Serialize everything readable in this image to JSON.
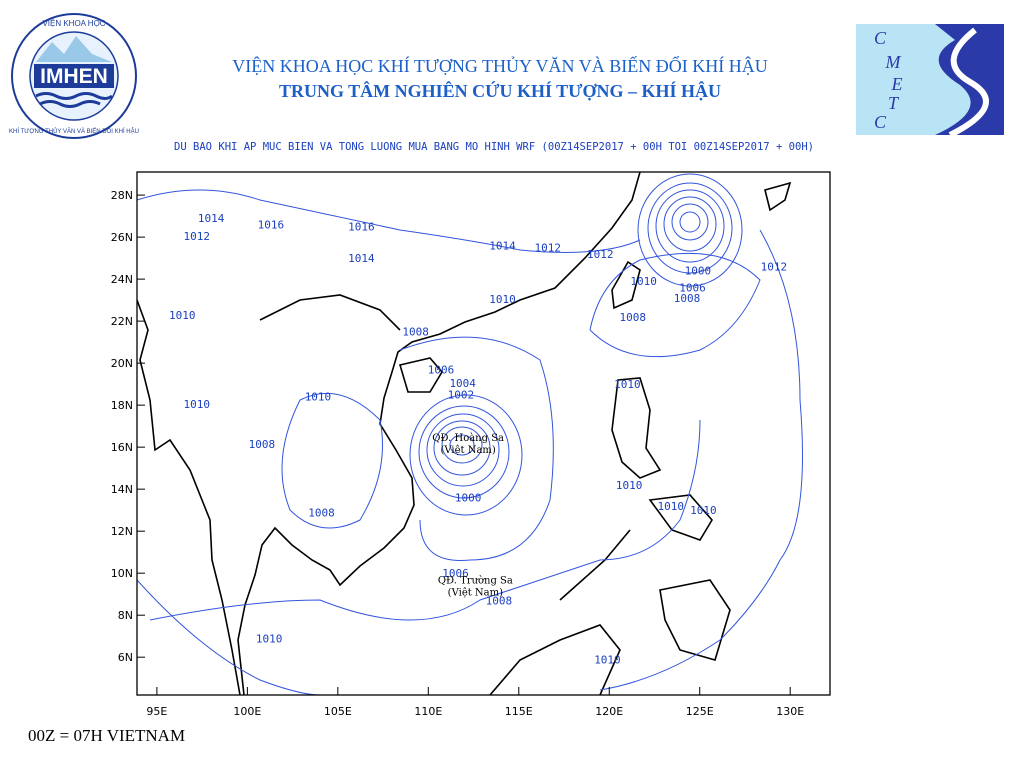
{
  "header": {
    "institute": "VIỆN KHOA HỌC KHÍ TƯỢNG THỦY VĂN VÀ BIẾN ĐỔI KHÍ HẬU",
    "center": "TRUNG TÂM NGHIÊN CỨU KHÍ TƯỢNG – KHÍ HẬU",
    "left_logo": {
      "name": "IMHEN",
      "ring_top": "VIỆN KHOA HỌC",
      "ring_bottom": "KHÍ TƯỢNG THỦY VĂN VÀ BIẾN ĐỔI KHÍ HẬU"
    },
    "right_logo": {
      "letters": [
        "C",
        "M",
        "E",
        "T",
        "C"
      ]
    }
  },
  "map": {
    "title": "DU BAO KHI AP MUC BIEN VA TONG LUONG MUA BANG MO HINH WRF (00Z14SEP2017 + 00H TOI 00Z14SEP2017 + 00H)",
    "xlim": [
      93.9,
      132.2
    ],
    "ylim": [
      4.2,
      29.1
    ],
    "xticks": [
      {
        "value": 95,
        "label": "95E"
      },
      {
        "value": 100,
        "label": "100E"
      },
      {
        "value": 105,
        "label": "105E"
      },
      {
        "value": 110,
        "label": "110E"
      },
      {
        "value": 115,
        "label": "115E"
      },
      {
        "value": 120,
        "label": "120E"
      },
      {
        "value": 125,
        "label": "125E"
      },
      {
        "value": 130,
        "label": "130E"
      }
    ],
    "yticks": [
      {
        "value": 6,
        "label": "6N"
      },
      {
        "value": 8,
        "label": "8N"
      },
      {
        "value": 10,
        "label": "10N"
      },
      {
        "value": 12,
        "label": "12N"
      },
      {
        "value": 14,
        "label": "14N"
      },
      {
        "value": 16,
        "label": "16N"
      },
      {
        "value": 18,
        "label": "18N"
      },
      {
        "value": 20,
        "label": "20N"
      },
      {
        "value": 22,
        "label": "22N"
      },
      {
        "value": 24,
        "label": "24N"
      },
      {
        "value": 26,
        "label": "26N"
      },
      {
        "value": 28,
        "label": "28N"
      }
    ],
    "contour_labels": [
      {
        "label": "1014",
        "lon": 98.0,
        "lat": 26.9
      },
      {
        "label": "1012",
        "lon": 97.2,
        "lat": 26.05
      },
      {
        "label": "1016",
        "lon": 101.3,
        "lat": 26.6
      },
      {
        "label": "1016",
        "lon": 106.3,
        "lat": 26.5
      },
      {
        "label": "1014",
        "lon": 106.3,
        "lat": 25.0
      },
      {
        "label": "1014",
        "lon": 114.1,
        "lat": 25.6
      },
      {
        "label": "1012",
        "lon": 116.6,
        "lat": 25.5
      },
      {
        "label": "1012",
        "lon": 119.5,
        "lat": 25.2
      },
      {
        "label": "1012",
        "lon": 129.1,
        "lat": 24.6
      },
      {
        "label": "1000",
        "lon": 124.9,
        "lat": 24.4
      },
      {
        "label": "1006",
        "lon": 124.6,
        "lat": 23.6
      },
      {
        "label": "1008",
        "lon": 124.3,
        "lat": 23.1
      },
      {
        "label": "1010",
        "lon": 121.9,
        "lat": 23.9
      },
      {
        "label": "1010",
        "lon": 96.4,
        "lat": 22.3
      },
      {
        "label": "1010",
        "lon": 114.1,
        "lat": 23.05
      },
      {
        "label": "1008",
        "lon": 109.3,
        "lat": 21.5
      },
      {
        "label": "1008",
        "lon": 121.3,
        "lat": 22.2
      },
      {
        "label": "1006",
        "lon": 110.7,
        "lat": 19.7
      },
      {
        "label": "1004",
        "lon": 111.9,
        "lat": 19.05
      },
      {
        "label": "1002",
        "lon": 111.8,
        "lat": 18.5
      },
      {
        "label": "1010",
        "lon": 103.9,
        "lat": 18.4
      },
      {
        "label": "1010",
        "lon": 97.2,
        "lat": 18.05
      },
      {
        "label": "1010",
        "lon": 121.0,
        "lat": 19.0
      },
      {
        "label": "1008",
        "lon": 100.8,
        "lat": 16.15
      },
      {
        "label": "1000",
        "lon": 112.2,
        "lat": 13.6
      },
      {
        "label": "1010",
        "lon": 121.1,
        "lat": 14.2
      },
      {
        "label": "1010",
        "lon": 123.4,
        "lat": 13.2
      },
      {
        "label": "1010",
        "lon": 125.2,
        "lat": 13.0
      },
      {
        "label": "1008",
        "lon": 104.1,
        "lat": 12.9
      },
      {
        "label": "1006",
        "lon": 111.5,
        "lat": 10.0
      },
      {
        "label": "1008",
        "lon": 113.9,
        "lat": 8.7
      },
      {
        "label": "1010",
        "lon": 101.2,
        "lat": 6.9
      },
      {
        "label": "1010",
        "lon": 119.9,
        "lat": 5.9
      }
    ],
    "places": [
      {
        "name": "QĐ. Hoàng Sa",
        "country": "(Việt Nam)",
        "lon": 112.2,
        "lat": 16.3
      },
      {
        "name": "QĐ. Trường Sa",
        "country": "(Việt Nam)",
        "lon": 112.6,
        "lat": 9.5
      }
    ]
  },
  "footer": "00Z = 07H VIETNAM"
}
